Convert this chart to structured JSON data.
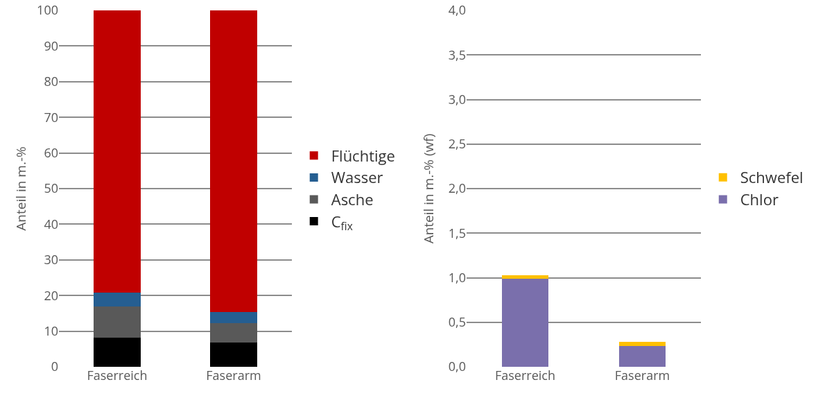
{
  "chart_data": [
    {
      "type": "bar",
      "stacked": true,
      "ylabel": "Anteil in m.-%",
      "categories": [
        "Faserreich",
        "Faserarm"
      ],
      "series": [
        {
          "name": "C$_{fix}$",
          "color": "#000000",
          "values": [
            8.2,
            6.8
          ]
        },
        {
          "name": "Asche",
          "color": "#595959",
          "values": [
            8.8,
            5.5
          ]
        },
        {
          "name": "Wasser",
          "color": "#255e91",
          "values": [
            3.9,
            3.1
          ]
        },
        {
          "name": "Flüchtige",
          "color": "#c00000",
          "values": [
            79.1,
            84.6
          ]
        }
      ],
      "ylim": [
        0,
        100
      ],
      "yticks": [
        0,
        10,
        20,
        30,
        40,
        50,
        60,
        70,
        80,
        90,
        100
      ],
      "grid": "y",
      "legend": "right"
    },
    {
      "type": "bar",
      "stacked": true,
      "ylabel": "Anteil in m.-% (wf)",
      "categories": [
        "Faserreich",
        "Faserarm"
      ],
      "series": [
        {
          "name": "Chlor",
          "color": "#7a6fac",
          "values": [
            0.99,
            0.23
          ]
        },
        {
          "name": "Schwefel",
          "color": "#ffc000",
          "values": [
            0.04,
            0.05
          ]
        }
      ],
      "ylim": [
        0,
        4
      ],
      "yticks": [
        {
          "value": 0,
          "label": "0,0"
        },
        {
          "value": 0.5,
          "label": "0,5"
        },
        {
          "value": 1,
          "label": "1,0"
        },
        {
          "value": 1.5,
          "label": "1,5"
        },
        {
          "value": 2,
          "label": "2,0"
        },
        {
          "value": 2.5,
          "label": "2,5"
        },
        {
          "value": 3,
          "label": "3,0"
        },
        {
          "value": 3.5,
          "label": "3,5"
        },
        {
          "value": 4,
          "label": "4,0"
        }
      ],
      "grid": "y",
      "legend": "right"
    }
  ]
}
